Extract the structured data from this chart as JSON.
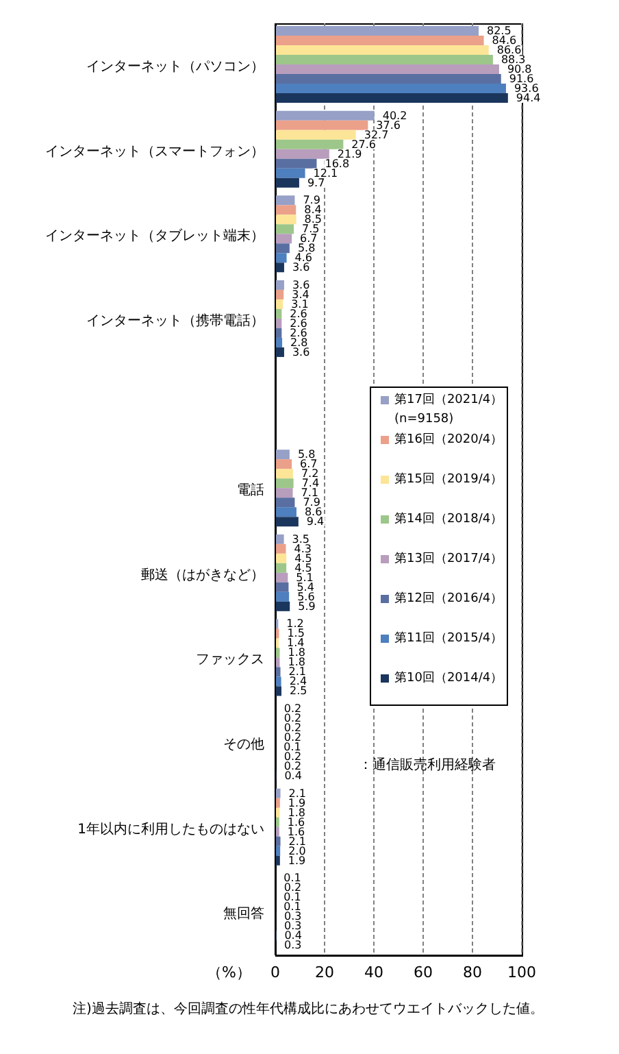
{
  "chart_data": {
    "type": "bar",
    "orientation": "horizontal",
    "categories": [
      "インターネット（パソコン）",
      "インターネット（スマートフォン）",
      "インターネット（タブレット端末）",
      "インターネット（携帯電話）",
      null,
      "電話",
      "郵送（はがきなど）",
      "ファックス",
      "その他",
      "1年以内に利用したものはない",
      "無回答"
    ],
    "xlabel": "（%）",
    "xlim": [
      0,
      100
    ],
    "xticks": [
      0,
      20,
      40,
      60,
      80,
      100
    ],
    "grid": "x",
    "legend": "right",
    "annotations": [
      "：通信販売利用経験者",
      "注)過去調査は、今回調査の性年代構成比にあわせてウエイトバックした値。"
    ],
    "series": [
      {
        "name": "第17回（2021/4）\n(n=9158)",
        "color": "#97a0c6",
        "values": [
          82.5,
          40.2,
          7.9,
          3.6,
          null,
          5.8,
          3.5,
          1.2,
          0.2,
          2.1,
          0.1
        ],
        "value_labels": [
          "82.5",
          "40.2",
          "7.9",
          "3.6",
          null,
          "5.8",
          "3.5",
          "1.2",
          "0.2",
          "2.1",
          "0.1"
        ]
      },
      {
        "name": "第16回（2020/4）",
        "color": "#eba08a",
        "values": [
          84.6,
          37.6,
          8.4,
          3.4,
          null,
          6.7,
          4.3,
          1.5,
          0.2,
          1.9,
          0.2
        ],
        "value_labels": [
          "84.6",
          "37.6",
          "8.4",
          "3.4",
          null,
          "6.7",
          "4.3",
          "1.5",
          "0.2",
          "1.9",
          "0.2"
        ]
      },
      {
        "name": "第15回（2019/4）",
        "color": "#fde597",
        "values": [
          86.6,
          32.7,
          8.5,
          3.1,
          null,
          7.2,
          4.5,
          1.4,
          0.2,
          1.8,
          0.1
        ],
        "value_labels": [
          "86.6",
          "32.7",
          "8.5",
          "3.1",
          null,
          "7.2",
          "4.5",
          "1.4",
          "0.2",
          "1.8",
          "0.1"
        ]
      },
      {
        "name": "第14回（2018/4）",
        "color": "#9dc78a",
        "values": [
          88.3,
          27.6,
          7.5,
          2.6,
          null,
          7.4,
          4.5,
          1.8,
          0.2,
          1.6,
          0.1
        ],
        "value_labels": [
          "88.3",
          "27.6",
          "7.5",
          "2.6",
          null,
          "7.4",
          "4.5",
          "1.8",
          "0.2",
          "1.6",
          "0.1"
        ]
      },
      {
        "name": "第13回（2017/4）",
        "color": "#b89dbd",
        "values": [
          90.8,
          21.9,
          6.7,
          2.6,
          null,
          7.1,
          5.1,
          1.8,
          0.1,
          1.6,
          0.3
        ],
        "value_labels": [
          "90.8",
          "21.9",
          "6.7",
          "2.6",
          null,
          "7.1",
          "5.1",
          "1.8",
          "0.1",
          "1.6",
          "0.3"
        ]
      },
      {
        "name": "第12回（2016/4）",
        "color": "#5a6fa1",
        "values": [
          91.6,
          16.8,
          5.8,
          2.6,
          null,
          7.9,
          5.4,
          2.1,
          0.2,
          2.1,
          0.3
        ],
        "value_labels": [
          "91.6",
          "16.8",
          "5.8",
          "2.6",
          null,
          "7.9",
          "5.4",
          "2.1",
          "0.2",
          "2.1",
          "0.3"
        ]
      },
      {
        "name": "第11回（2015/4）",
        "color": "#4e7fbe",
        "values": [
          93.6,
          12.1,
          4.6,
          2.8,
          null,
          8.6,
          5.6,
          2.4,
          0.2,
          2.0,
          0.4
        ],
        "value_labels": [
          "93.6",
          "12.1",
          "4.6",
          "2.8",
          null,
          "8.6",
          "5.6",
          "2.4",
          "0.2",
          "2.0",
          "0.4"
        ]
      },
      {
        "name": "第10回（2014/4）",
        "color": "#1b365d",
        "values": [
          94.4,
          9.7,
          3.6,
          3.6,
          null,
          9.4,
          5.9,
          2.5,
          0.4,
          1.9,
          0.3
        ],
        "value_labels": [
          "94.4",
          "9.7",
          "3.6",
          "3.6",
          null,
          "9.4",
          "5.9",
          "2.5",
          "0.4",
          "1.9",
          "0.3"
        ]
      }
    ]
  }
}
